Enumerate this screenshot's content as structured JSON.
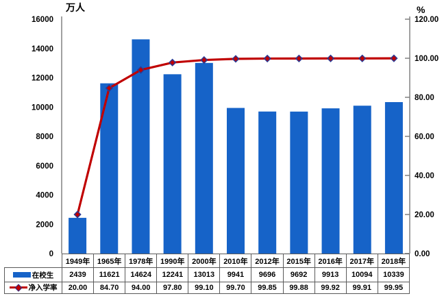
{
  "chart_data": {
    "type": "combo",
    "categories": [
      "1949年",
      "1965年",
      "1978年",
      "1990年",
      "2000年",
      "2010年",
      "2012年",
      "2015年",
      "2016年",
      "2017年",
      "2018年"
    ],
    "series": [
      {
        "name": "在校生",
        "type": "bar",
        "axis": "left",
        "color": "#1663C8",
        "values": [
          2439,
          11621,
          14624,
          12241,
          13013,
          9941,
          9696,
          9692,
          9913,
          10094,
          10339
        ],
        "display": [
          "2439",
          "11621",
          "14624",
          "12241",
          "13013",
          "9941",
          "9696",
          "9692",
          "9913",
          "10094",
          "10339"
        ]
      },
      {
        "name": "净入学率",
        "type": "line",
        "axis": "right",
        "color": "#C00000",
        "marker": {
          "shape": "diamond",
          "fill": "#C00000",
          "stroke": "#2B3A94"
        },
        "values": [
          20.0,
          84.7,
          94.0,
          97.8,
          99.1,
          99.7,
          99.85,
          99.88,
          99.92,
          99.91,
          99.95
        ],
        "display": [
          "20.00",
          "84.70",
          "94.00",
          "97.80",
          "99.10",
          "99.70",
          "99.85",
          "99.88",
          "99.92",
          "99.91",
          "99.95"
        ]
      }
    ],
    "left_axis": {
      "title": "万人",
      "min": 0,
      "max": 16000,
      "step": 2000,
      "tick_labels": [
        "0",
        "2000",
        "4000",
        "6000",
        "8000",
        "10000",
        "12000",
        "14000",
        "16000"
      ]
    },
    "right_axis": {
      "title": "%",
      "min": 0,
      "max": 120,
      "step": 20,
      "tick_labels": [
        "0.00",
        "20.00",
        "40.00",
        "60.00",
        "80.00",
        "100.00",
        "120.00"
      ]
    },
    "grid": false,
    "legend_position": "data-table-left",
    "colors": {
      "axis_line": "#808080",
      "table_border": "#595959",
      "bar": "#1663C8",
      "line": "#C00000",
      "marker_stroke": "#2B3A94",
      "text": "#000000"
    }
  }
}
